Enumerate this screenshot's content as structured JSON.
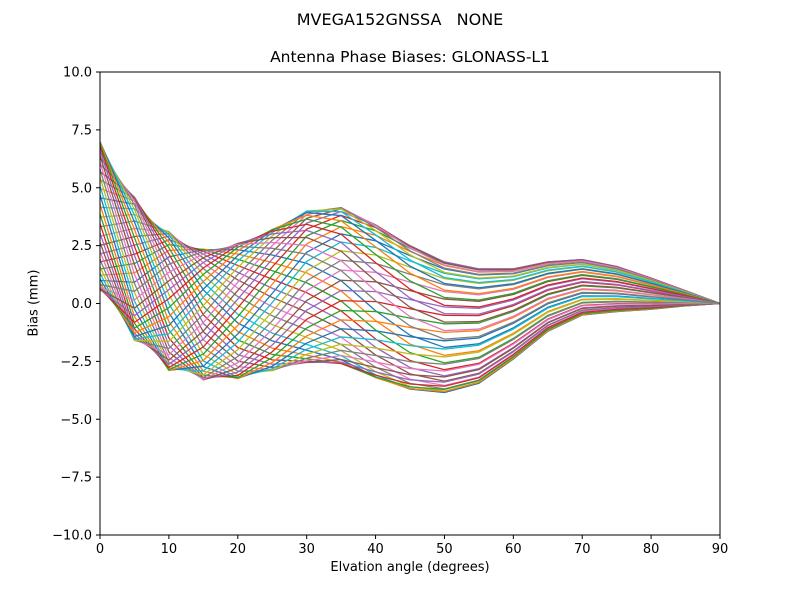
{
  "figure": {
    "title": "MVEGA152GNSSA   NONE",
    "subtitle": "Antenna Phase Biases: GLONASS-L1"
  },
  "colors": {
    "background": "#ffffff",
    "axes": "#000000",
    "text": "#000000"
  },
  "chart_data": {
    "type": "line",
    "title": "Antenna Phase Biases: GLONASS-L1",
    "suptitle": "MVEGA152GNSSA   NONE",
    "xlabel": "Elvation angle (degrees)",
    "ylabel": "Bias (mm)",
    "xlim": [
      0,
      90
    ],
    "ylim": [
      -10.0,
      10.0
    ],
    "grid": false,
    "legend": "none",
    "x_ticks": [
      0,
      10,
      20,
      30,
      40,
      50,
      60,
      70,
      80,
      90
    ],
    "x_tick_labels": [
      "0",
      "10",
      "20",
      "30",
      "40",
      "50",
      "60",
      "70",
      "80",
      "90"
    ],
    "y_ticks": [
      -10.0,
      -7.5,
      -5.0,
      -2.5,
      0.0,
      2.5,
      5.0,
      7.5,
      10.0
    ],
    "y_tick_labels": [
      "−10.0",
      "−7.5",
      "−5.0",
      "−2.5",
      "0.0",
      "2.5",
      "5.0",
      "7.5",
      "10.0"
    ],
    "x": [
      0,
      5,
      10,
      15,
      20,
      25,
      30,
      35,
      40,
      45,
      50,
      55,
      60,
      65,
      70,
      75,
      80,
      85,
      90
    ],
    "envelope_top": [
      7.0,
      4.6,
      3.1,
      2.35,
      2.6,
      3.2,
      4.0,
      4.15,
      3.4,
      2.5,
      1.8,
      1.5,
      1.5,
      1.8,
      1.9,
      1.6,
      1.1,
      0.55,
      0.0
    ],
    "envelope_bottom": [
      0.6,
      -1.6,
      -2.9,
      -3.3,
      -3.25,
      -2.9,
      -2.55,
      -2.6,
      -3.2,
      -3.7,
      -3.85,
      -3.45,
      -2.4,
      -1.2,
      -0.5,
      -0.35,
      -0.25,
      -0.1,
      0.0
    ],
    "phase": [
      0.08,
      0.22,
      0.36,
      0.48,
      0.57,
      0.64,
      0.7,
      0.74,
      0.77,
      0.79,
      0.8,
      0.8,
      0.8,
      0.8,
      0.8,
      0.8,
      0.8,
      0.8,
      0.8
    ],
    "n_series": 48,
    "series_model": "many overlapping per-channel bias curves spanning between envelope_bottom and envelope_top, crossing over 0-45 deg and converging to 0 at 90 deg",
    "palette": [
      "#1f77b4",
      "#ff7f0e",
      "#2ca02c",
      "#d62728",
      "#9467bd",
      "#8c564b",
      "#e377c2",
      "#7f7f7f",
      "#bcbd22",
      "#17becf"
    ]
  }
}
